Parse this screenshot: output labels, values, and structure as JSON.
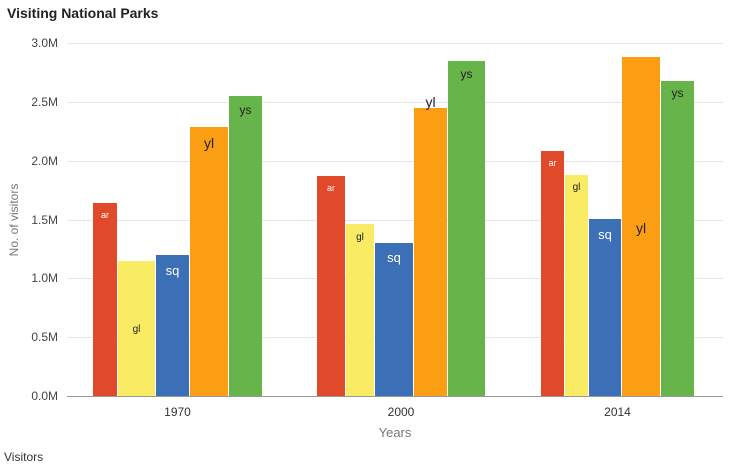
{
  "page": {
    "title": "Visiting National Parks",
    "footer": "Visitors"
  },
  "colors": {
    "ar": "#E0492A",
    "gl": "#F9EC64",
    "sq": "#3B6FB6",
    "yl": "#FB9E13",
    "ys": "#66B44A"
  },
  "chart_data": {
    "type": "bar",
    "title": "Visiting National Parks",
    "xlabel": "Years",
    "ylabel": "No. of visitors",
    "ylim": [
      0,
      3000000
    ],
    "yticks": [
      "0.0M",
      "0.5M",
      "1.0M",
      "1.5M",
      "2.0M",
      "2.5M",
      "3.0M"
    ],
    "grid": true,
    "legend": "none (bars annotated with labels)",
    "categories": [
      "1970",
      "2000",
      "2014"
    ],
    "series": [
      {
        "name": "ar",
        "values": [
          1640000,
          1870000,
          2080000
        ]
      },
      {
        "name": "gl",
        "values": [
          1150000,
          1460000,
          1880000
        ]
      },
      {
        "name": "sq",
        "values": [
          1200000,
          1300000,
          1500000
        ]
      },
      {
        "name": "yl",
        "values": [
          2290000,
          2450000,
          2880000
        ]
      },
      {
        "name": "ys",
        "values": [
          2550000,
          2850000,
          2680000
        ]
      }
    ],
    "annotations": "Each bar carries its series label (ar, gl, sq, yl, ys)"
  }
}
